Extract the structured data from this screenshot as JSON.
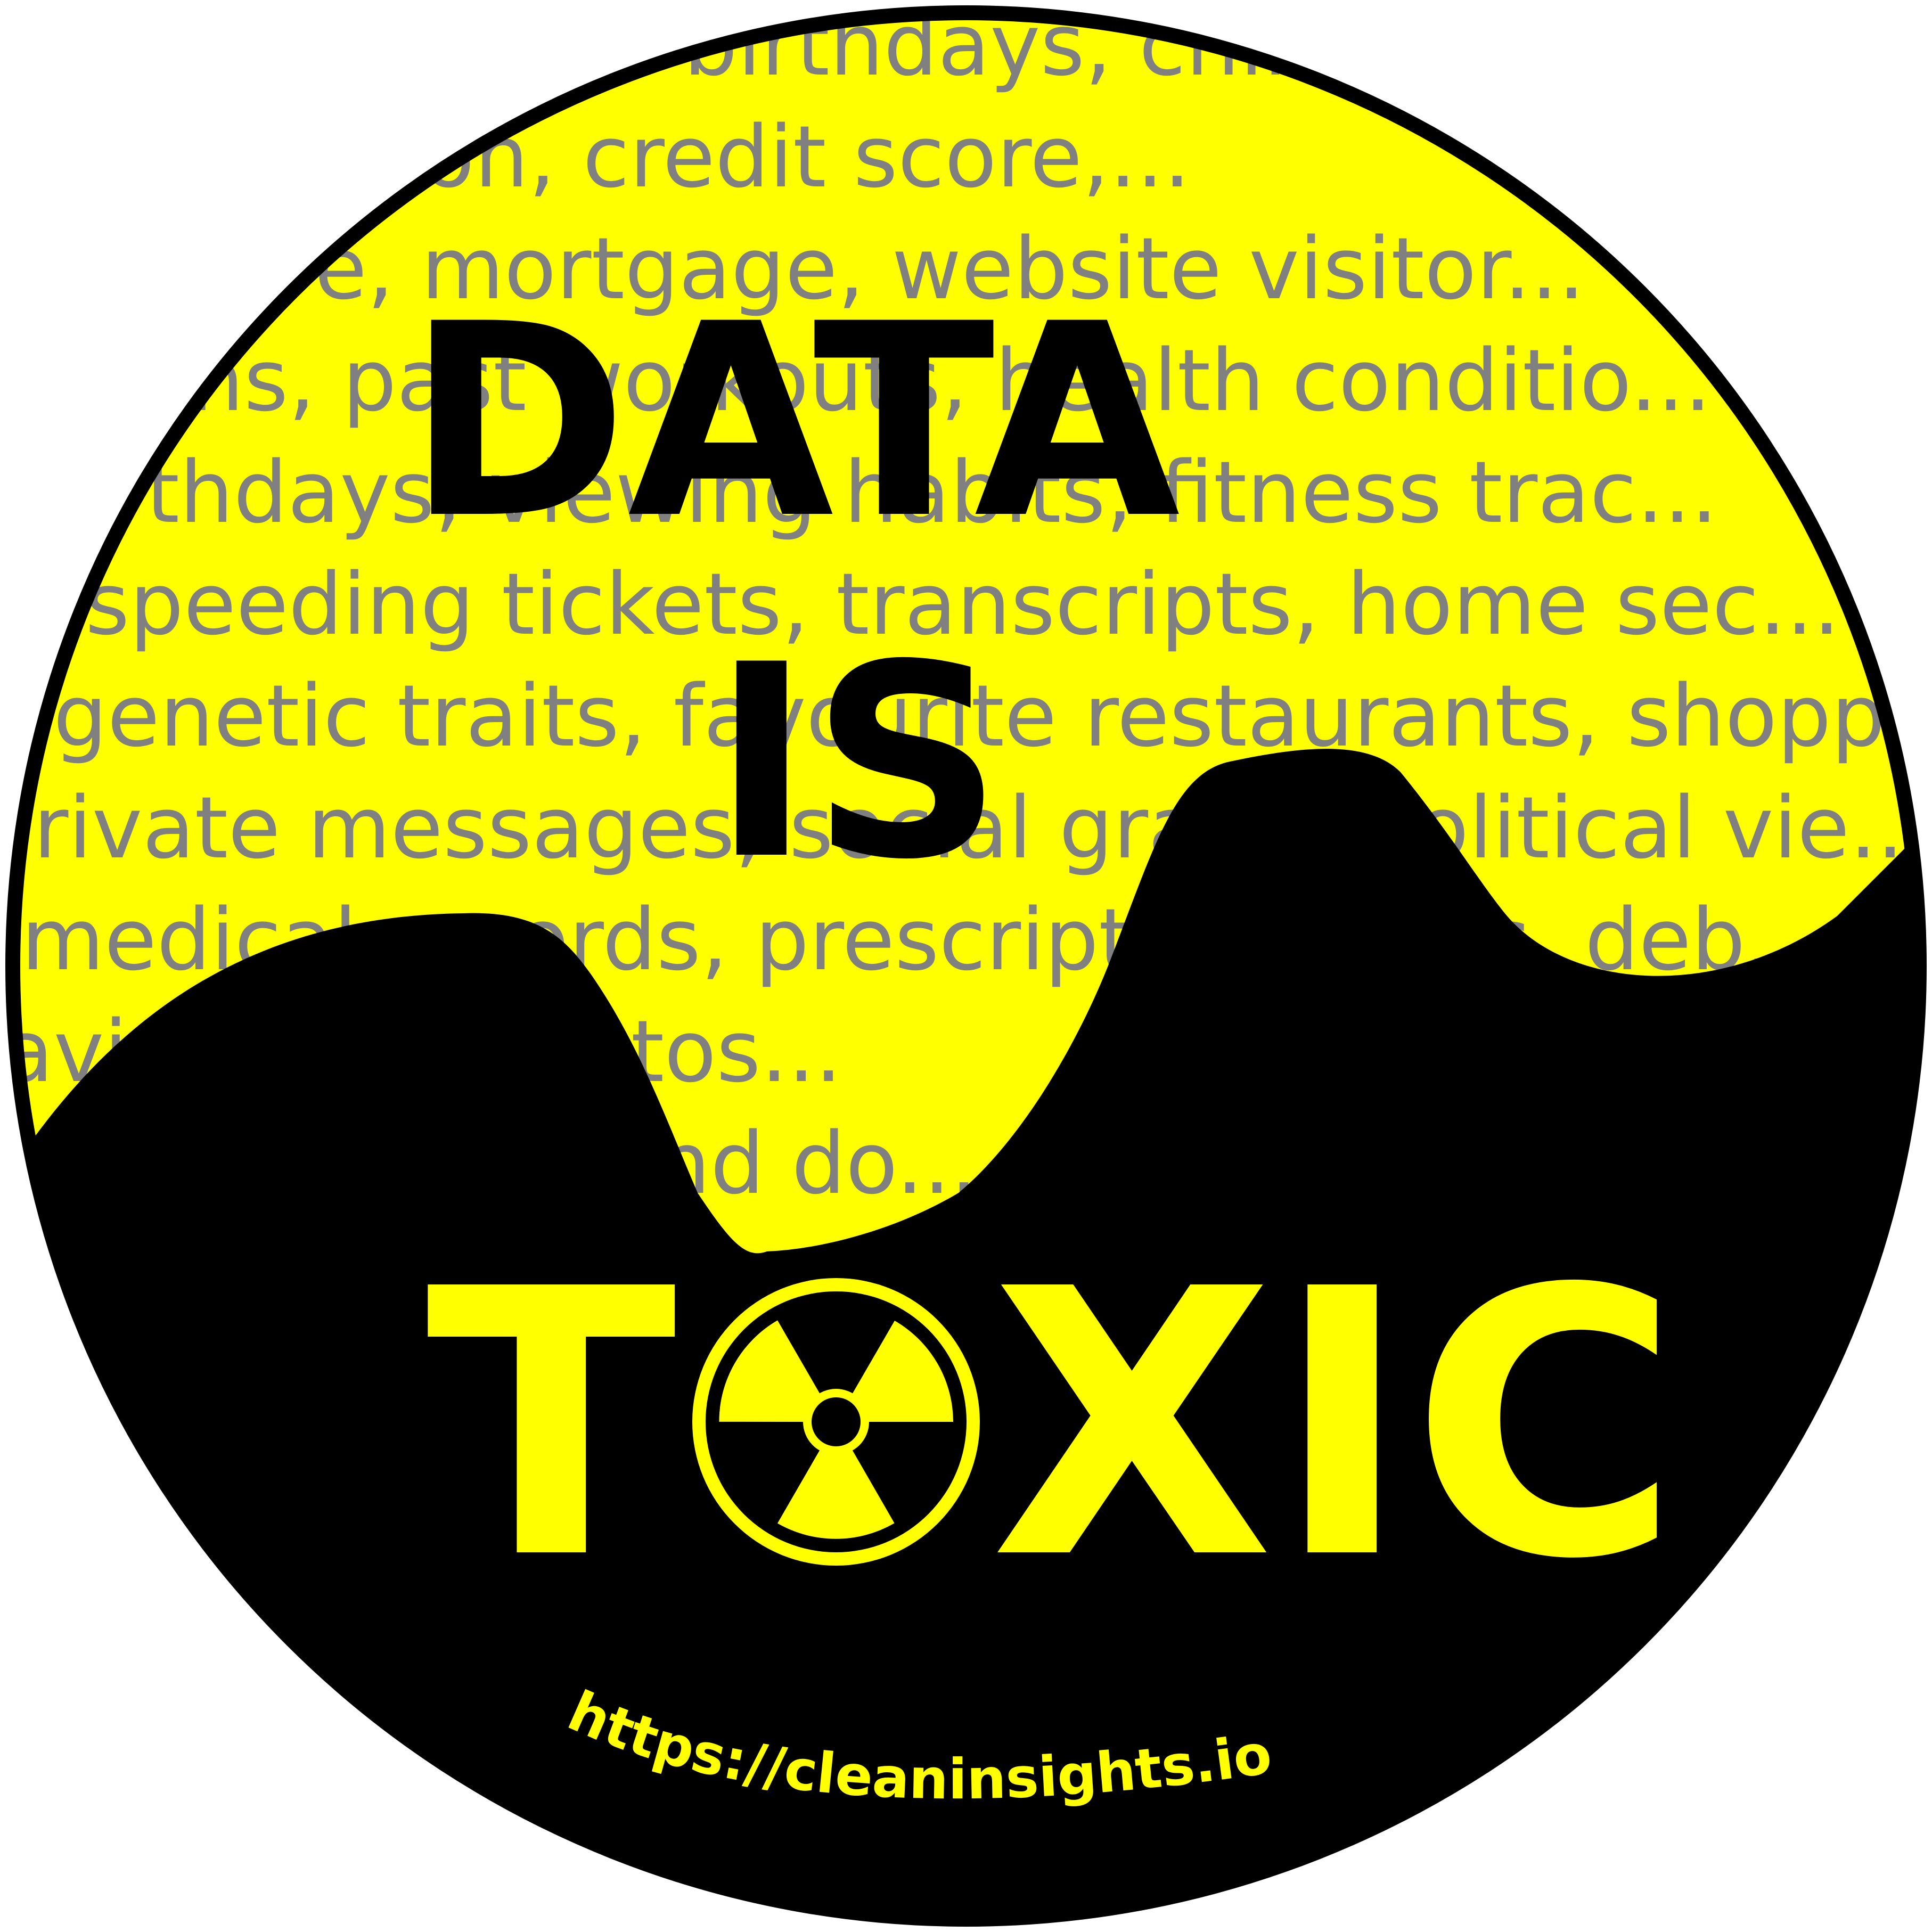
{
  "colors": {
    "yellow": "#ffff00",
    "black": "#000000",
    "gray_text": "#808080"
  },
  "background_lines": [
    "... birthdays, chlid...",
    "...s, location, credit score,...",
    "...core, mortgage, website visitor...",
    "...plans, past workouts, health conditio...",
    "...birthdays, viewing habits, fitness trac...",
    "speeding tickets, transcripts, home sec...",
    "genetic traits, favourite restaurants, shopp...",
    "...rivate messages, social graph, political vie...",
    "medical records, prescription drugs, deb...",
    "...aving...ive photos...",
    "...nd do..."
  ],
  "title": {
    "line1": "DATA",
    "line2": "IS",
    "line3_prefix": "T",
    "line3_suffix": "XIC"
  },
  "icons": {
    "radiation": "radiation-icon"
  },
  "url": "https://cleaninsights.io"
}
